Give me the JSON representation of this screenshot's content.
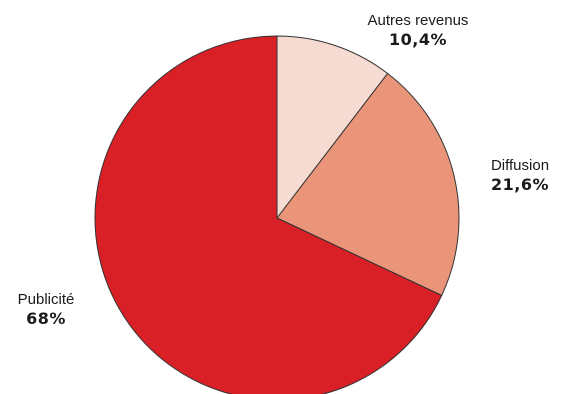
{
  "chart_data": {
    "type": "pie",
    "title": "",
    "slices": [
      {
        "label": "Autres revenus",
        "value_text": "10,4%",
        "value": 10.4,
        "color": "#f5dbd1"
      },
      {
        "label": "Diffusion",
        "value_text": "21,6%",
        "value": 21.6,
        "color": "#ea957a"
      },
      {
        "label": "Publicité",
        "value_text": "68%",
        "value": 68,
        "color": "#d92027"
      }
    ],
    "start": "12 o'clock, clockwise",
    "slice_border_color": "#333333",
    "legend": "none"
  }
}
